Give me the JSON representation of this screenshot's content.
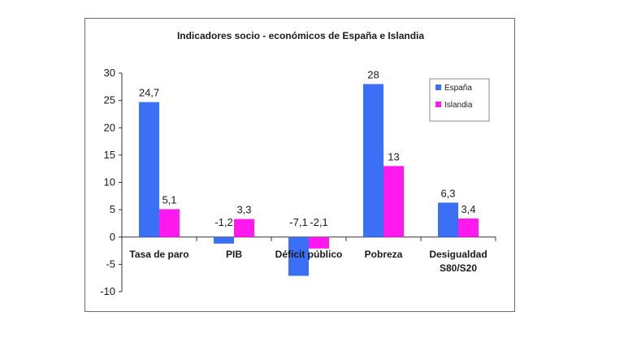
{
  "chart_data": {
    "type": "bar",
    "title": "Indicadores socio - económicos de España e Islandia",
    "categories": [
      "Tasa de paro",
      "PIB",
      "Déficit público",
      "Pobreza",
      "Desigualdad S80/S20"
    ],
    "category_lines": [
      [
        "Tasa de paro"
      ],
      [
        "PIB"
      ],
      [
        "Déficit público"
      ],
      [
        "Pobreza"
      ],
      [
        "Desigualdad",
        "S80/S20"
      ]
    ],
    "series": [
      {
        "name": "España",
        "values": [
          24.7,
          -1.2,
          -7.1,
          28,
          6.3
        ],
        "labels": [
          "24,7",
          "-1,2",
          "-7,1",
          "28",
          "6,3"
        ],
        "color": "#3b6ff5"
      },
      {
        "name": "Islandia",
        "values": [
          5.1,
          3.3,
          -2.1,
          13,
          3.4
        ],
        "labels": [
          "5,1",
          "3,3",
          "-2,1",
          "13",
          "3,4"
        ],
        "color": "#ff19ef"
      }
    ],
    "xlabel": "",
    "ylabel": "",
    "ylim": [
      -10,
      30
    ],
    "yticks": [
      -10,
      -5,
      0,
      5,
      10,
      15,
      20,
      25,
      30
    ],
    "grid": false,
    "legend_position": "top-right"
  }
}
